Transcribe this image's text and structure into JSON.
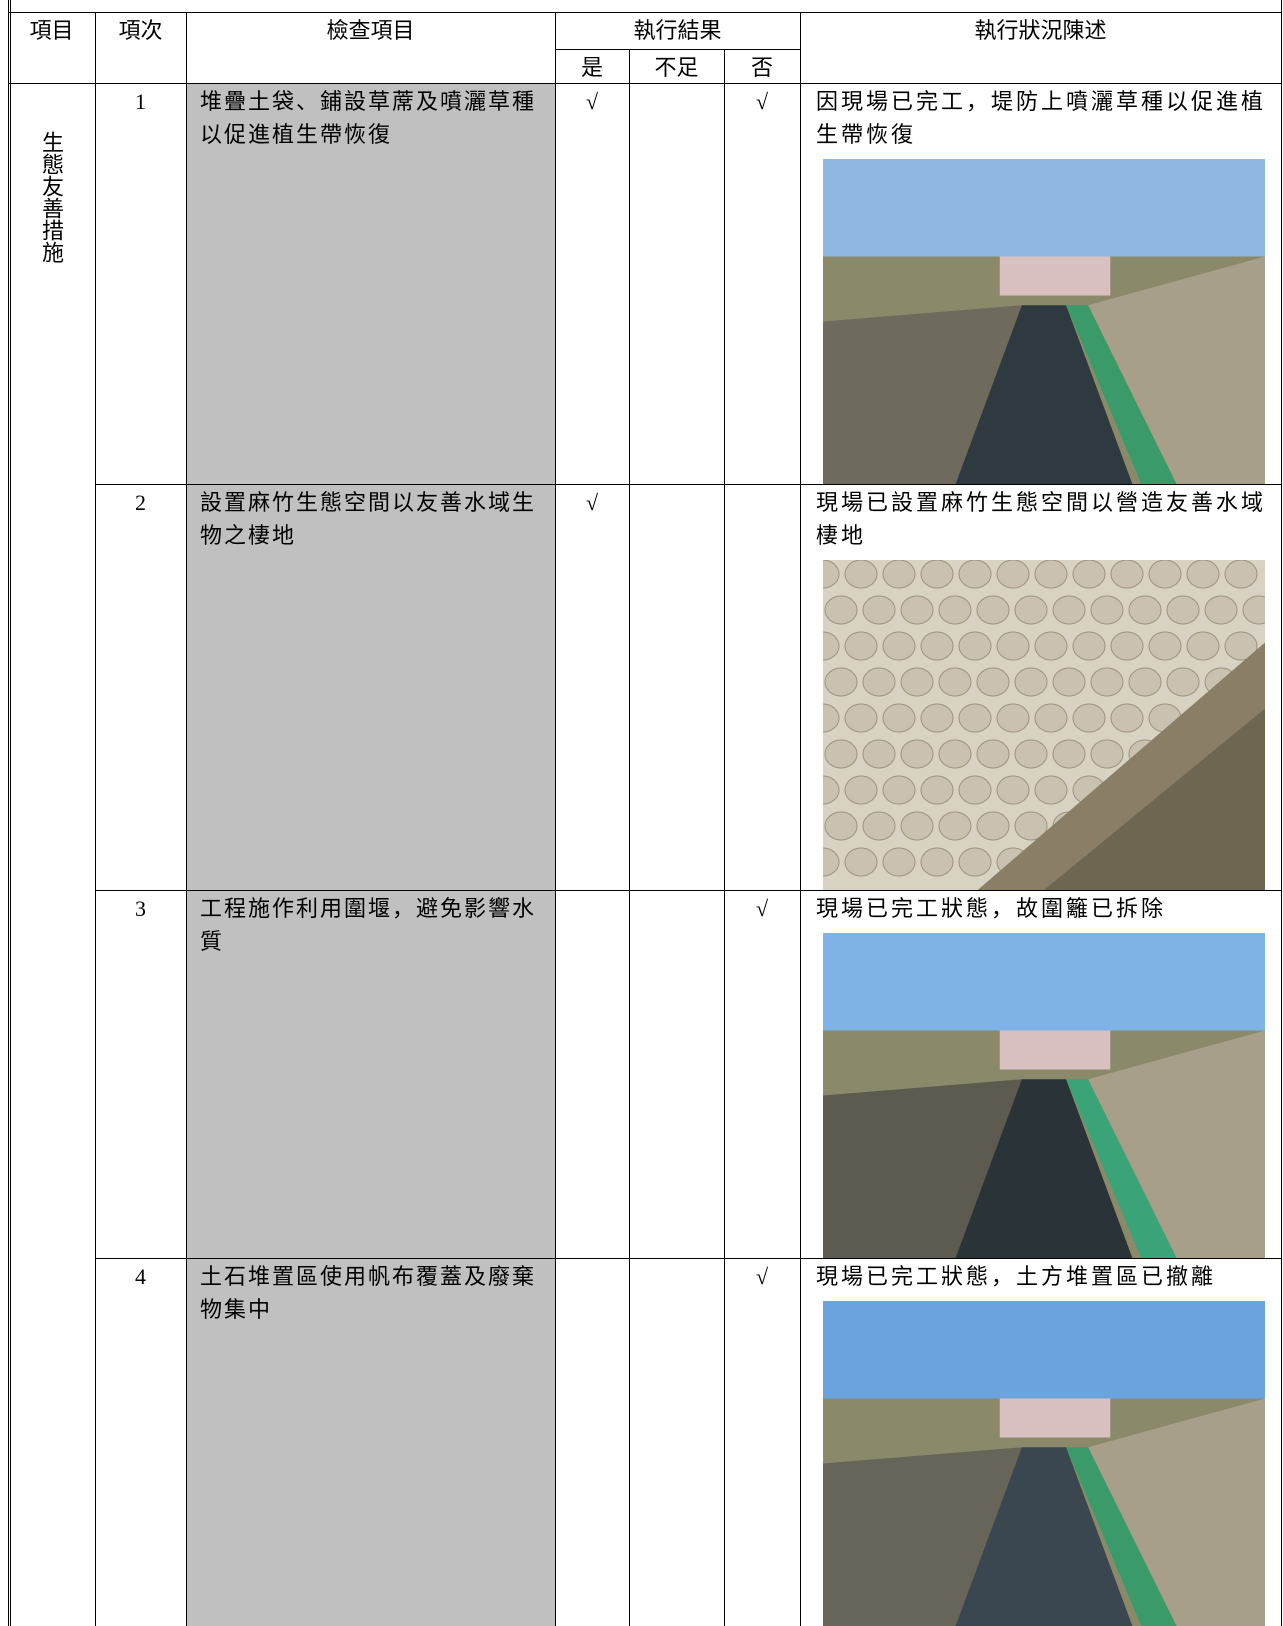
{
  "table": {
    "header": {
      "item": "項目",
      "number": "項次",
      "check_item": "檢查項目",
      "result": "執行結果",
      "yes": "是",
      "insufficient": "不足",
      "no": "否",
      "description": "執行狀況陳述"
    },
    "category": "生態友善措施",
    "rows": [
      {
        "number": "1",
        "check_item": "堆疊土袋、鋪設草蓆及噴灑草種以促進植生帶恢復",
        "yes": "√",
        "no": "√",
        "description": "因現場已完工，堤防上噴灑草種以促進植生帶恢復"
      },
      {
        "number": "2",
        "check_item": "設置麻竹生態空間以友善水域生物之棲地",
        "yes": "√",
        "description": "現場已設置麻竹生態空間以營造友善水域棲地"
      },
      {
        "number": "3",
        "check_item": "工程施作利用圍堰，避免影響水質",
        "no": "√",
        "description": "現場已完工狀態，故圍籬已拆除"
      },
      {
        "number": "4",
        "check_item": "土石堆置區使用帆布覆蓋及廢棄物集中",
        "no": "√",
        "description": "現場已完工狀態，土方堆置區已撤離"
      }
    ]
  }
}
